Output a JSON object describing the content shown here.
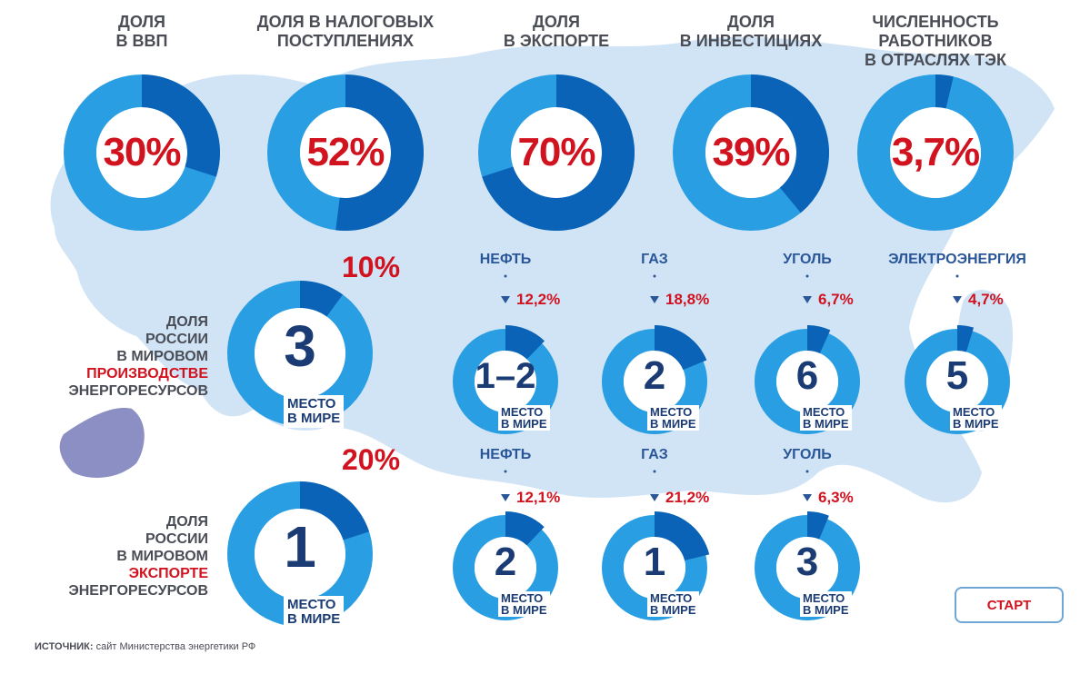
{
  "colors": {
    "dark_blue": "#0a63b6",
    "light_blue": "#2a9ee3",
    "map_blue": "#a9cdee",
    "highlight_red": "#d1121f",
    "crimea_purple": "#8c8fc3",
    "label_gray": "#4a4d55",
    "rank_navy": "#1a3b73"
  },
  "top_row": [
    {
      "label": "ДОЛЯ\nВ ВВП",
      "value": 30,
      "value_label": "30%"
    },
    {
      "label": "ДОЛЯ В НАЛОГОВЫХ\nПОСТУПЛЕНИЯХ",
      "value": 52,
      "value_label": "52%"
    },
    {
      "label": "ДОЛЯ\nВ ЭКСПОРТЕ",
      "value": 70,
      "value_label": "70%"
    },
    {
      "label": "ДОЛЯ\nВ ИНВЕСТИЦИЯХ",
      "value": 39,
      "value_label": "39%"
    },
    {
      "label": "ЧИСЛЕННОСТЬ\nРАБОТНИКОВ\nВ ОТРАСЛЯХ ТЭК",
      "value": 3.7,
      "value_label": "3,7%"
    }
  ],
  "rank_caption": "МЕСТО\nВ МИРЕ",
  "production": {
    "label_line1": "ДОЛЯ",
    "label_line2": "РОССИИ",
    "label_line3": "В МИРОВОМ",
    "label_highlight": "ПРОИЗВОДСТВЕ",
    "label_line5": "ЭНЕРГОРЕСУРСОВ",
    "total": {
      "value": 10,
      "value_label": "10%",
      "rank": "3"
    },
    "items": [
      {
        "name": "НЕФТЬ",
        "value": 12.2,
        "value_label": "12,2%",
        "rank": "1–2"
      },
      {
        "name": "ГАЗ",
        "value": 18.8,
        "value_label": "18,8%",
        "rank": "2"
      },
      {
        "name": "УГОЛЬ",
        "value": 6.7,
        "value_label": "6,7%",
        "rank": "6"
      },
      {
        "name": "ЭЛЕКТРОЭНЕРГИЯ",
        "value": 4.7,
        "value_label": "4,7%",
        "rank": "5"
      }
    ]
  },
  "export": {
    "label_line1": "ДОЛЯ",
    "label_line2": "РОССИИ",
    "label_line3": "В МИРОВОМ",
    "label_highlight": "ЭКСПОРТЕ",
    "label_line5": "ЭНЕРГОРЕСУРСОВ",
    "total": {
      "value": 20,
      "value_label": "20%",
      "rank": "1"
    },
    "items": [
      {
        "name": "НЕФТЬ",
        "value": 12.1,
        "value_label": "12,1%",
        "rank": "2"
      },
      {
        "name": "ГАЗ",
        "value": 21.2,
        "value_label": "21,2%",
        "rank": "1"
      },
      {
        "name": "УГОЛЬ",
        "value": 6.3,
        "value_label": "6,3%",
        "rank": "3"
      }
    ]
  },
  "source": {
    "label": "ИСТОЧНИК:",
    "text": "сайт Министерства энергетики РФ"
  },
  "start_button": "СТАРТ",
  "chart_data": {
    "type": "pie",
    "top_shares_percent": {
      "ДОЛЯ В ВВП": 30,
      "ДОЛЯ В НАЛОГОВЫХ ПОСТУПЛЕНИЯХ": 52,
      "ДОЛЯ В ЭКСПОРТЕ": 70,
      "ДОЛЯ В ИНВЕСТИЦИЯХ": 39,
      "ЧИСЛЕННОСТЬ РАБОТНИКОВ В ОТРАСЛЯХ ТЭК": 3.7
    },
    "production_share_percent": {
      "total": 10,
      "НЕФТЬ": 12.2,
      "ГАЗ": 18.8,
      "УГОЛЬ": 6.7,
      "ЭЛЕКТРОЭНЕРГИЯ": 4.7
    },
    "production_world_rank": {
      "total": "3",
      "НЕФТЬ": "1–2",
      "ГАЗ": "2",
      "УГОЛЬ": "6",
      "ЭЛЕКТРОЭНЕРГИЯ": "5"
    },
    "export_share_percent": {
      "total": 20,
      "НЕФТЬ": 12.1,
      "ГАЗ": 21.2,
      "УГОЛЬ": 6.3
    },
    "export_world_rank": {
      "total": "1",
      "НЕФТЬ": "2",
      "ГАЗ": "1",
      "УГОЛЬ": "3"
    }
  }
}
